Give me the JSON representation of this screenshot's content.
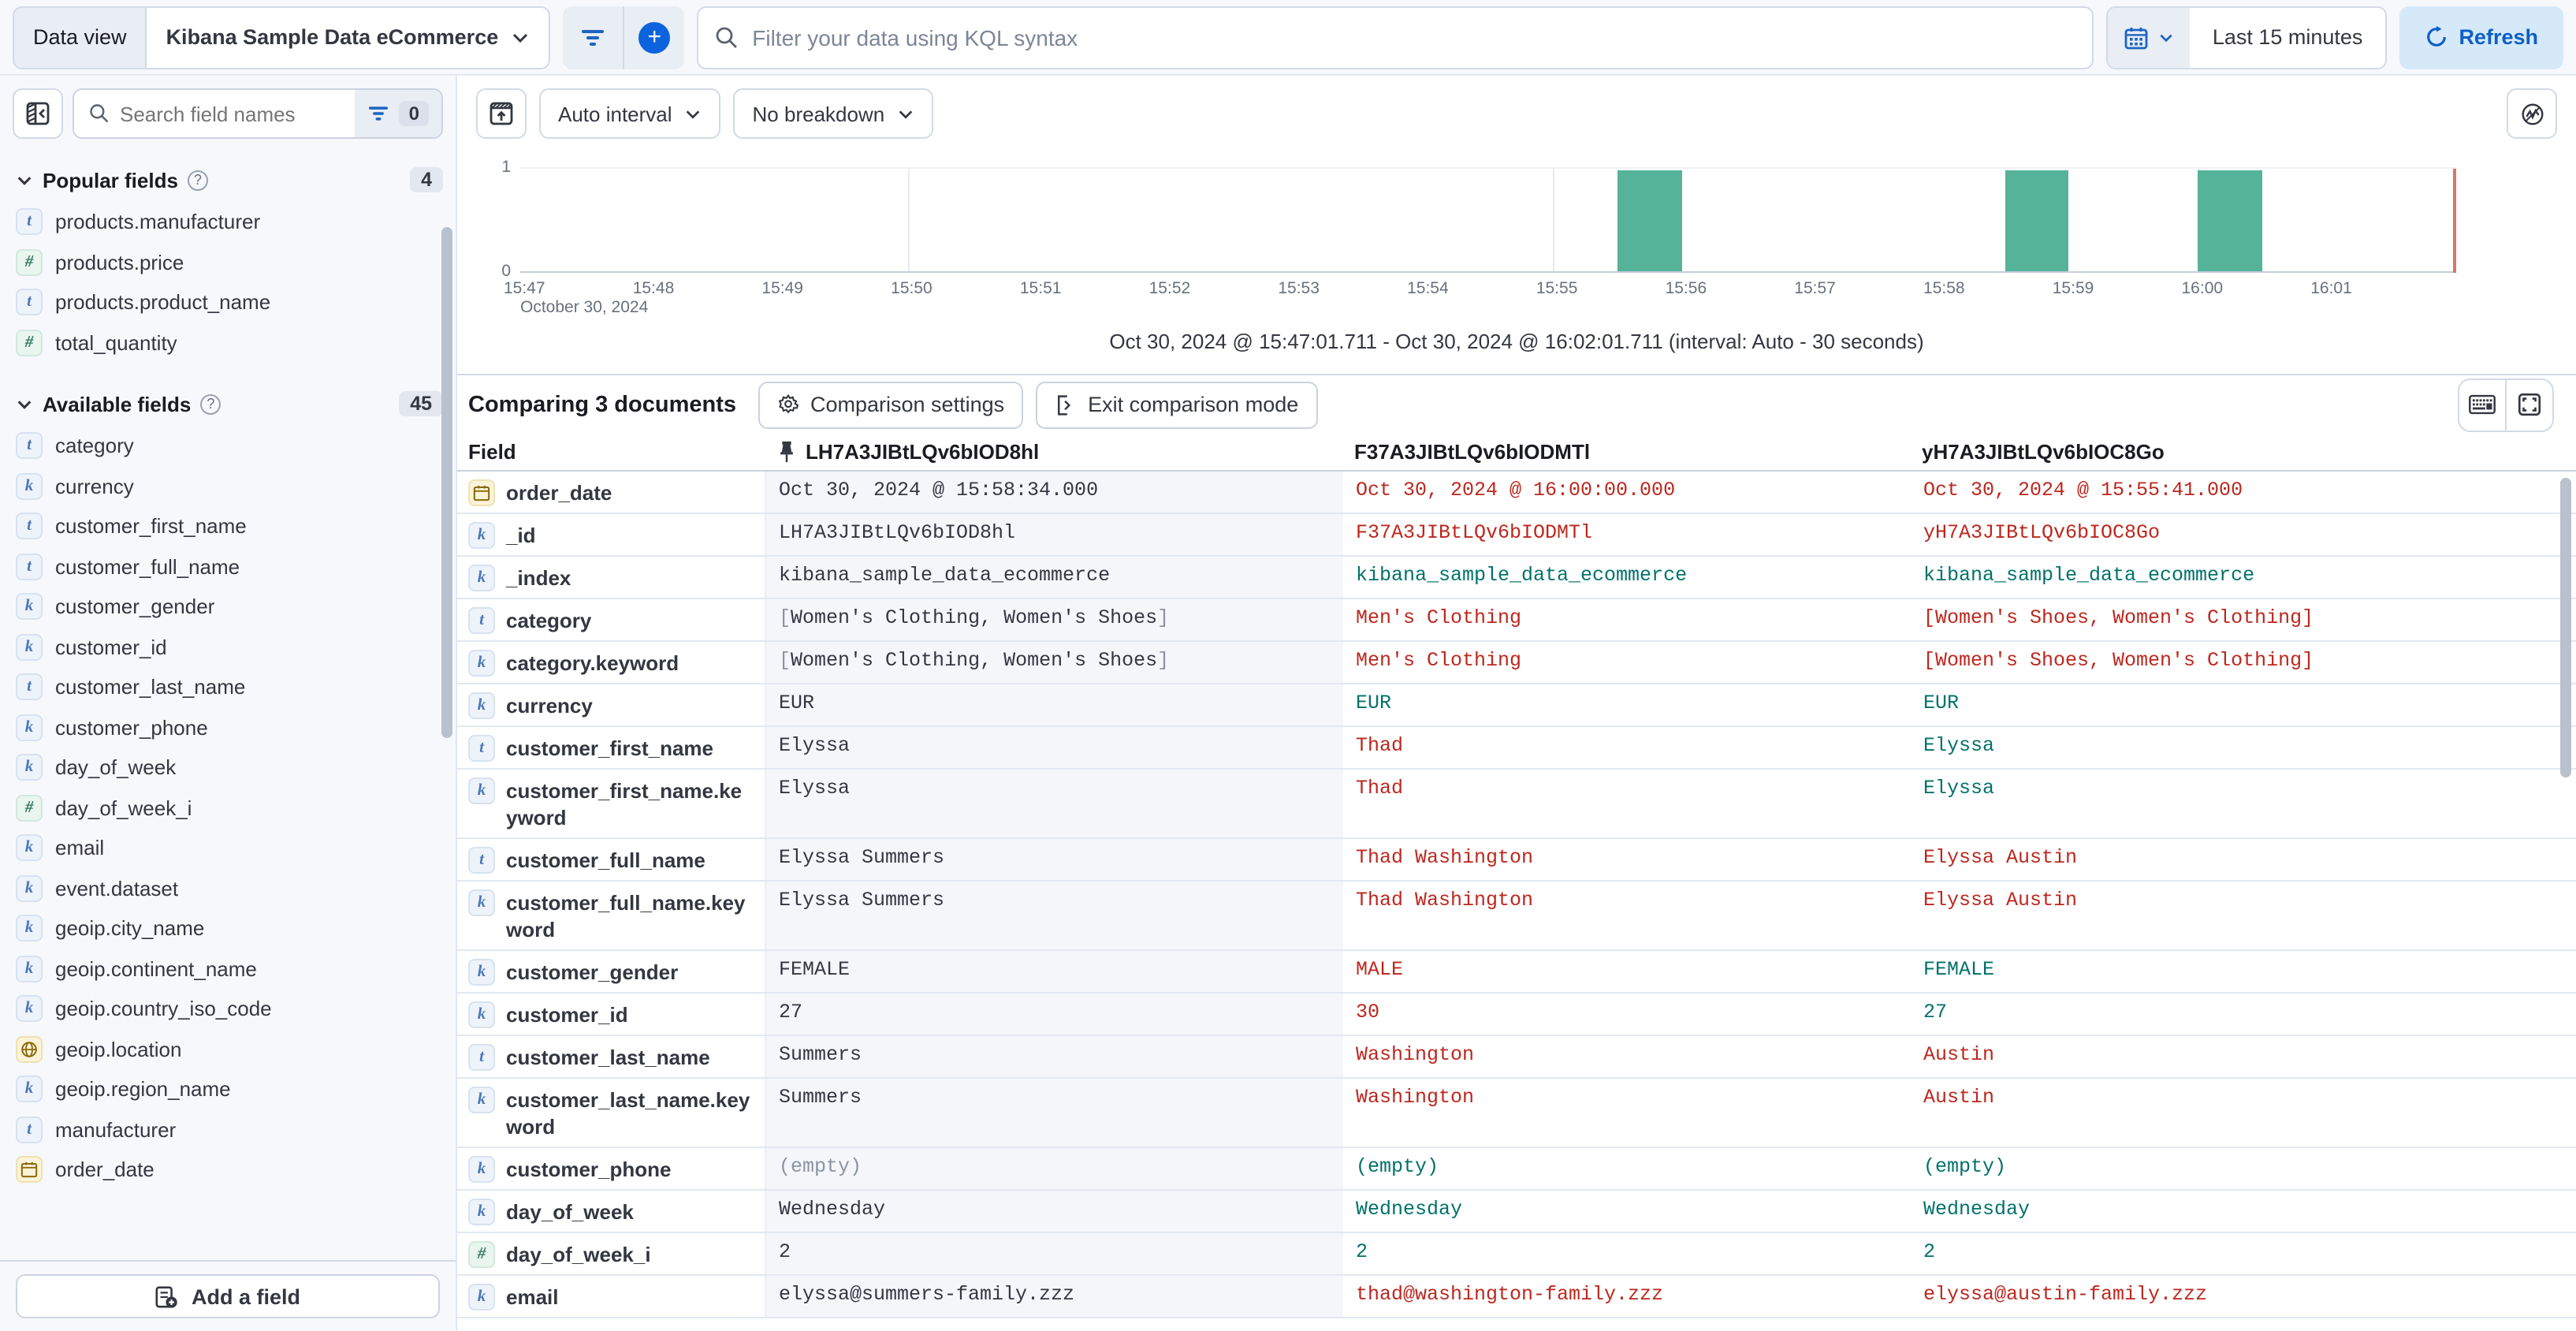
{
  "top_bar": {
    "data_view_label": "Data view",
    "data_view_value": "Kibana Sample Data eCommerce",
    "kql_placeholder": "Filter your data using KQL syntax",
    "time_range": "Last 15 minutes",
    "refresh_label": "Refresh"
  },
  "sidebar": {
    "search_placeholder": "Search field names",
    "filter_count": "0",
    "add_field_label": "Add a field",
    "popular": {
      "label": "Popular fields",
      "count": "4",
      "items": [
        {
          "type": "t",
          "name": "products.manufacturer"
        },
        {
          "type": "n",
          "name": "products.price"
        },
        {
          "type": "t",
          "name": "products.product_name"
        },
        {
          "type": "n",
          "name": "total_quantity"
        }
      ]
    },
    "available": {
      "label": "Available fields",
      "count": "45",
      "items": [
        {
          "type": "t",
          "name": "category"
        },
        {
          "type": "k",
          "name": "currency"
        },
        {
          "type": "t",
          "name": "customer_first_name"
        },
        {
          "type": "t",
          "name": "customer_full_name"
        },
        {
          "type": "k",
          "name": "customer_gender"
        },
        {
          "type": "k",
          "name": "customer_id"
        },
        {
          "type": "t",
          "name": "customer_last_name"
        },
        {
          "type": "k",
          "name": "customer_phone"
        },
        {
          "type": "k",
          "name": "day_of_week"
        },
        {
          "type": "n",
          "name": "day_of_week_i"
        },
        {
          "type": "k",
          "name": "email"
        },
        {
          "type": "k",
          "name": "event.dataset"
        },
        {
          "type": "k",
          "name": "geoip.city_name"
        },
        {
          "type": "k",
          "name": "geoip.continent_name"
        },
        {
          "type": "k",
          "name": "geoip.country_iso_code"
        },
        {
          "type": "geo",
          "name": "geoip.location"
        },
        {
          "type": "k",
          "name": "geoip.region_name"
        },
        {
          "type": "t",
          "name": "manufacturer"
        },
        {
          "type": "date",
          "name": "order_date"
        }
      ]
    }
  },
  "chart": {
    "interval_label": "Auto interval",
    "breakdown_label": "No breakdown",
    "caption": "Oct 30, 2024 @ 15:47:01.711 - Oct 30, 2024 @ 16:02:01.711 (interval: Auto - 30 seconds)"
  },
  "chart_data": {
    "type": "bar",
    "title": "Document count histogram",
    "x_date_label": "October 30, 2024",
    "x_ticks": [
      "15:47",
      "15:48",
      "15:49",
      "15:50",
      "15:51",
      "15:52",
      "15:53",
      "15:54",
      "15:55",
      "15:56",
      "15:57",
      "15:58",
      "15:59",
      "16:00",
      "16:01"
    ],
    "x_domain_minutes": 15,
    "y_ticks": [
      "0",
      "1"
    ],
    "ylim": [
      0,
      1
    ],
    "bar_color": "#54b399",
    "bucket_seconds": 30,
    "bars": [
      {
        "time": "15:55:30",
        "offset_min": 8.5,
        "value": 1
      },
      {
        "time": "15:58:30",
        "offset_min": 11.5,
        "value": 1
      },
      {
        "time": "16:00:00",
        "offset_min": 13.0,
        "value": 1
      }
    ],
    "gridline_minutes": [
      3,
      8,
      13
    ],
    "now_line_color": "#d9756c"
  },
  "comparison": {
    "title": "Comparing 3 documents",
    "settings_label": "Comparison settings",
    "exit_label": "Exit comparison mode"
  },
  "table": {
    "field_header": "Field",
    "columns": [
      "LH7A3JIBtLQv6bIOD8hl",
      "F37A3JIBtLQv6bIODMTl",
      "yH7A3JIBtLQv6bIOC8Go"
    ],
    "status_colors": {
      "base": "#343741",
      "match": "#00726b",
      "diff": "#bd271e",
      "muted": "#8b93a3"
    },
    "rows": [
      {
        "type": "date",
        "field": "order_date",
        "values": [
          {
            "t": "Oct 30, 2024 @ 15:58:34.000",
            "s": "base"
          },
          {
            "t": "Oct 30, 2024 @ 16:00:00.000",
            "s": "diff"
          },
          {
            "t": "Oct 30, 2024 @ 15:55:41.000",
            "s": "diff"
          }
        ]
      },
      {
        "type": "k",
        "field": "_id",
        "values": [
          {
            "t": "LH7A3JIBtLQv6bIOD8hl",
            "s": "base"
          },
          {
            "t": "F37A3JIBtLQv6bIODMTl",
            "s": "diff"
          },
          {
            "t": "yH7A3JIBtLQv6bIOC8Go",
            "s": "diff"
          }
        ]
      },
      {
        "type": "k",
        "field": "_index",
        "values": [
          {
            "t": "kibana_sample_data_ecommerce",
            "s": "base"
          },
          {
            "t": "kibana_sample_data_ecommerce",
            "s": "match"
          },
          {
            "t": "kibana_sample_data_ecommerce",
            "s": "match"
          }
        ]
      },
      {
        "type": "t",
        "field": "category",
        "values": [
          {
            "t": "[Women's Clothing, Women's Shoes]",
            "s": "abase"
          },
          {
            "t": "Men's Clothing",
            "s": "diff"
          },
          {
            "t": "[Women's Shoes, Women's Clothing]",
            "s": "diff"
          }
        ]
      },
      {
        "type": "k",
        "field": "category.keyword",
        "values": [
          {
            "t": "[Women's Clothing, Women's Shoes]",
            "s": "abase"
          },
          {
            "t": "Men's Clothing",
            "s": "diff"
          },
          {
            "t": "[Women's Shoes, Women's Clothing]",
            "s": "diff"
          }
        ]
      },
      {
        "type": "k",
        "field": "currency",
        "values": [
          {
            "t": "EUR",
            "s": "base"
          },
          {
            "t": "EUR",
            "s": "match"
          },
          {
            "t": "EUR",
            "s": "match"
          }
        ]
      },
      {
        "type": "t",
        "field": "customer_first_name",
        "values": [
          {
            "t": "Elyssa",
            "s": "base"
          },
          {
            "t": "Thad",
            "s": "diff"
          },
          {
            "t": "Elyssa",
            "s": "match"
          }
        ]
      },
      {
        "type": "k",
        "field": "customer_first_name.keyword",
        "values": [
          {
            "t": "Elyssa",
            "s": "base"
          },
          {
            "t": "Thad",
            "s": "diff"
          },
          {
            "t": "Elyssa",
            "s": "match"
          }
        ]
      },
      {
        "type": "t",
        "field": "customer_full_name",
        "values": [
          {
            "t": "Elyssa Summers",
            "s": "base"
          },
          {
            "t": "Thad Washington",
            "s": "diff"
          },
          {
            "t": "Elyssa Austin",
            "s": "diff"
          }
        ]
      },
      {
        "type": "k",
        "field": "customer_full_name.keyword",
        "values": [
          {
            "t": "Elyssa Summers",
            "s": "base"
          },
          {
            "t": "Thad Washington",
            "s": "diff"
          },
          {
            "t": "Elyssa Austin",
            "s": "diff"
          }
        ]
      },
      {
        "type": "k",
        "field": "customer_gender",
        "values": [
          {
            "t": "FEMALE",
            "s": "base"
          },
          {
            "t": "MALE",
            "s": "diff"
          },
          {
            "t": "FEMALE",
            "s": "match"
          }
        ]
      },
      {
        "type": "k",
        "field": "customer_id",
        "values": [
          {
            "t": "27",
            "s": "base"
          },
          {
            "t": "30",
            "s": "diff"
          },
          {
            "t": "27",
            "s": "match"
          }
        ]
      },
      {
        "type": "t",
        "field": "customer_last_name",
        "values": [
          {
            "t": "Summers",
            "s": "base"
          },
          {
            "t": "Washington",
            "s": "diff"
          },
          {
            "t": "Austin",
            "s": "diff"
          }
        ]
      },
      {
        "type": "k",
        "field": "customer_last_name.keyword",
        "values": [
          {
            "t": "Summers",
            "s": "base"
          },
          {
            "t": "Washington",
            "s": "diff"
          },
          {
            "t": "Austin",
            "s": "diff"
          }
        ]
      },
      {
        "type": "k",
        "field": "customer_phone",
        "values": [
          {
            "t": "(empty)",
            "s": "muted"
          },
          {
            "t": "(empty)",
            "s": "match"
          },
          {
            "t": "(empty)",
            "s": "match"
          }
        ]
      },
      {
        "type": "k",
        "field": "day_of_week",
        "values": [
          {
            "t": "Wednesday",
            "s": "base"
          },
          {
            "t": "Wednesday",
            "s": "match"
          },
          {
            "t": "Wednesday",
            "s": "match"
          }
        ]
      },
      {
        "type": "n",
        "field": "day_of_week_i",
        "values": [
          {
            "t": "2",
            "s": "base"
          },
          {
            "t": "2",
            "s": "match"
          },
          {
            "t": "2",
            "s": "match"
          }
        ]
      },
      {
        "type": "k",
        "field": "email",
        "values": [
          {
            "t": "elyssa@summers-family.zzz",
            "s": "base"
          },
          {
            "t": "thad@washington-family.zzz",
            "s": "diff"
          },
          {
            "t": "elyssa@austin-family.zzz",
            "s": "diff"
          }
        ]
      }
    ]
  }
}
